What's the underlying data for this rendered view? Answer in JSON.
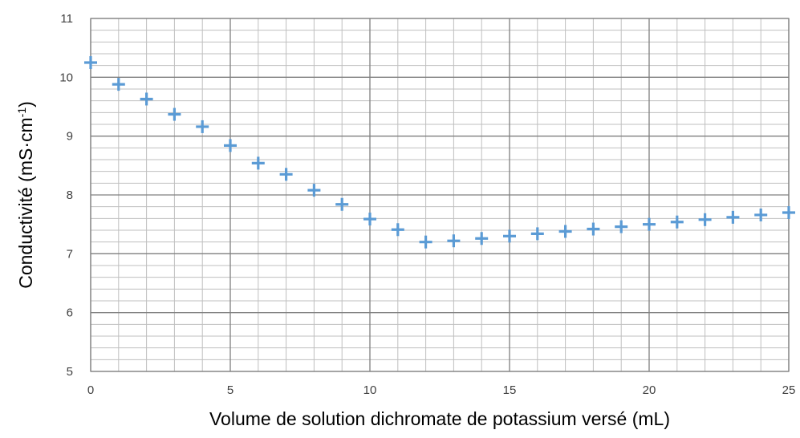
{
  "chart_data": {
    "type": "scatter",
    "title": "",
    "xlabel": "Volume de solution dichromate de potassium versé (mL)",
    "ylabel_main": "Conductivité (mS·cm",
    "ylabel_sup": "-1",
    "ylabel_close": ")",
    "xlim": [
      0,
      25
    ],
    "ylim": [
      5,
      11
    ],
    "x_major_ticks": [
      0,
      5,
      10,
      15,
      20,
      25
    ],
    "x_minor_step": 1,
    "y_major_ticks": [
      5,
      6,
      7,
      8,
      9,
      10,
      11
    ],
    "y_minor_step": 0.2,
    "grid": true,
    "marker": "plus",
    "marker_color": "#5b9bd5",
    "major_grid_color": "#808080",
    "minor_grid_color": "#bfbfbf",
    "series": [
      {
        "x": [
          0,
          1,
          2,
          3,
          4,
          5,
          6,
          7,
          8,
          9,
          10,
          11,
          12,
          13,
          14,
          15,
          16,
          17,
          18,
          19,
          20,
          21,
          22,
          23,
          24,
          25
        ],
        "y": [
          10.25,
          9.88,
          9.63,
          9.37,
          9.16,
          8.84,
          8.54,
          8.35,
          8.08,
          7.84,
          7.59,
          7.41,
          7.2,
          7.22,
          7.26,
          7.3,
          7.34,
          7.38,
          7.42,
          7.46,
          7.5,
          7.54,
          7.58,
          7.62,
          7.66,
          7.7
        ]
      }
    ]
  }
}
